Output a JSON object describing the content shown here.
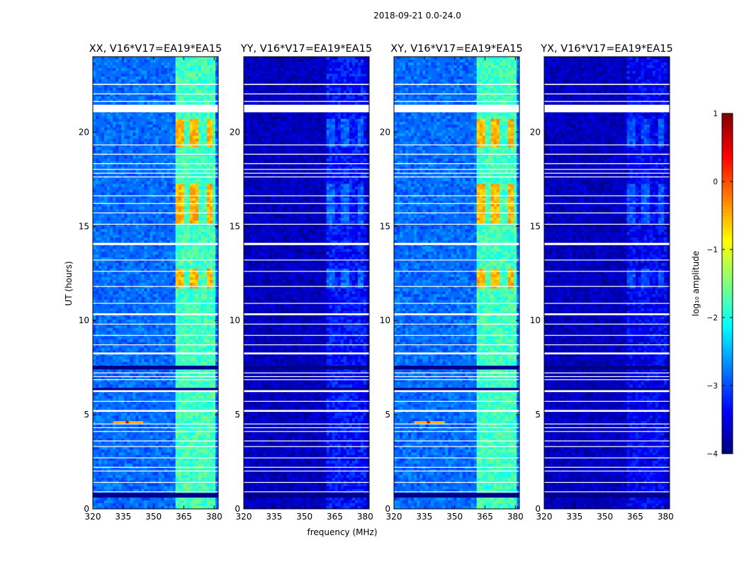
{
  "figure": {
    "suptitle": "2018-09-21 0.0-24.0",
    "xlabel": "frequency (MHz)",
    "ylabel": "UT (hours)"
  },
  "chart_data": {
    "type": "heatmap",
    "x": {
      "label": "frequency (MHz)",
      "range": [
        320,
        382
      ],
      "ticks": [
        320,
        335,
        350,
        365,
        380
      ],
      "unit": "MHz"
    },
    "y": {
      "label": "UT (hours)",
      "range": [
        0,
        24
      ],
      "ticks": [
        0,
        5,
        10,
        15,
        20
      ],
      "unit": "hours"
    },
    "panels": [
      {
        "title": "XX, V16*V17=EA19*EA15",
        "pol": "XX",
        "base_level": -2.85,
        "band_level": -1.8,
        "hot_level": -0.6,
        "spot": true
      },
      {
        "title": "YY, V16*V17=EA19*EA15",
        "pol": "YY",
        "base_level": -3.7,
        "band_level": -3.3,
        "hot_level": -3.0,
        "spot": false
      },
      {
        "title": "XY, V16*V17=EA19*EA15",
        "pol": "XY",
        "base_level": -2.85,
        "band_level": -1.8,
        "hot_level": -0.6,
        "spot": true
      },
      {
        "title": "YX, V16*V17=EA19*EA15",
        "pol": "YX",
        "base_level": -3.7,
        "band_level": -3.4,
        "hot_level": -3.1,
        "spot": false
      }
    ],
    "rfi_band_mhz": [
      361,
      380
    ],
    "hot_hours": [
      [
        11.7,
        12.8
      ],
      [
        15.2,
        17.3
      ],
      [
        19.2,
        20.7
      ]
    ],
    "spot_hours": 4.6,
    "flagged_ut_hours": [
      [
        21.05,
        21.45
      ],
      [
        14.0,
        14.12
      ],
      [
        10.28,
        10.38
      ],
      [
        8.2,
        8.3
      ],
      [
        6.2,
        6.3
      ],
      [
        5.15,
        5.25
      ],
      [
        22.5,
        22.56
      ],
      [
        22.0,
        22.05
      ],
      [
        21.6,
        21.65
      ],
      [
        19.3,
        19.34
      ],
      [
        18.8,
        18.85
      ],
      [
        18.3,
        18.35
      ],
      [
        18.0,
        18.04
      ],
      [
        17.8,
        17.84
      ],
      [
        17.6,
        17.64
      ],
      [
        16.6,
        16.64
      ],
      [
        16.2,
        16.23
      ],
      [
        15.7,
        15.73
      ],
      [
        15.1,
        15.13
      ],
      [
        13.2,
        13.23
      ],
      [
        12.6,
        12.63
      ],
      [
        11.8,
        11.83
      ],
      [
        10.9,
        10.93
      ],
      [
        9.8,
        9.83
      ],
      [
        9.2,
        9.23
      ],
      [
        8.7,
        8.73
      ],
      [
        7.2,
        7.24
      ],
      [
        7.0,
        7.04
      ],
      [
        6.85,
        6.88
      ],
      [
        5.7,
        5.73
      ],
      [
        4.5,
        4.53
      ],
      [
        4.3,
        4.33
      ],
      [
        4.1,
        4.13
      ],
      [
        3.6,
        3.63
      ],
      [
        3.3,
        3.33
      ],
      [
        2.7,
        2.73
      ],
      [
        2.2,
        2.23
      ],
      [
        2.0,
        2.03
      ],
      [
        1.4,
        1.43
      ],
      [
        0.9,
        0.93
      ]
    ],
    "dark_ut_hours": [
      [
        7.4,
        7.6
      ],
      [
        0.6,
        0.85
      ],
      [
        6.3,
        6.42
      ]
    ],
    "colorbar": {
      "label": "log₁₀ amplitude",
      "range": [
        -4,
        1
      ],
      "ticks": [
        "1",
        "0",
        "−1",
        "−2",
        "−3",
        "−4"
      ],
      "colormap": "jet"
    }
  }
}
